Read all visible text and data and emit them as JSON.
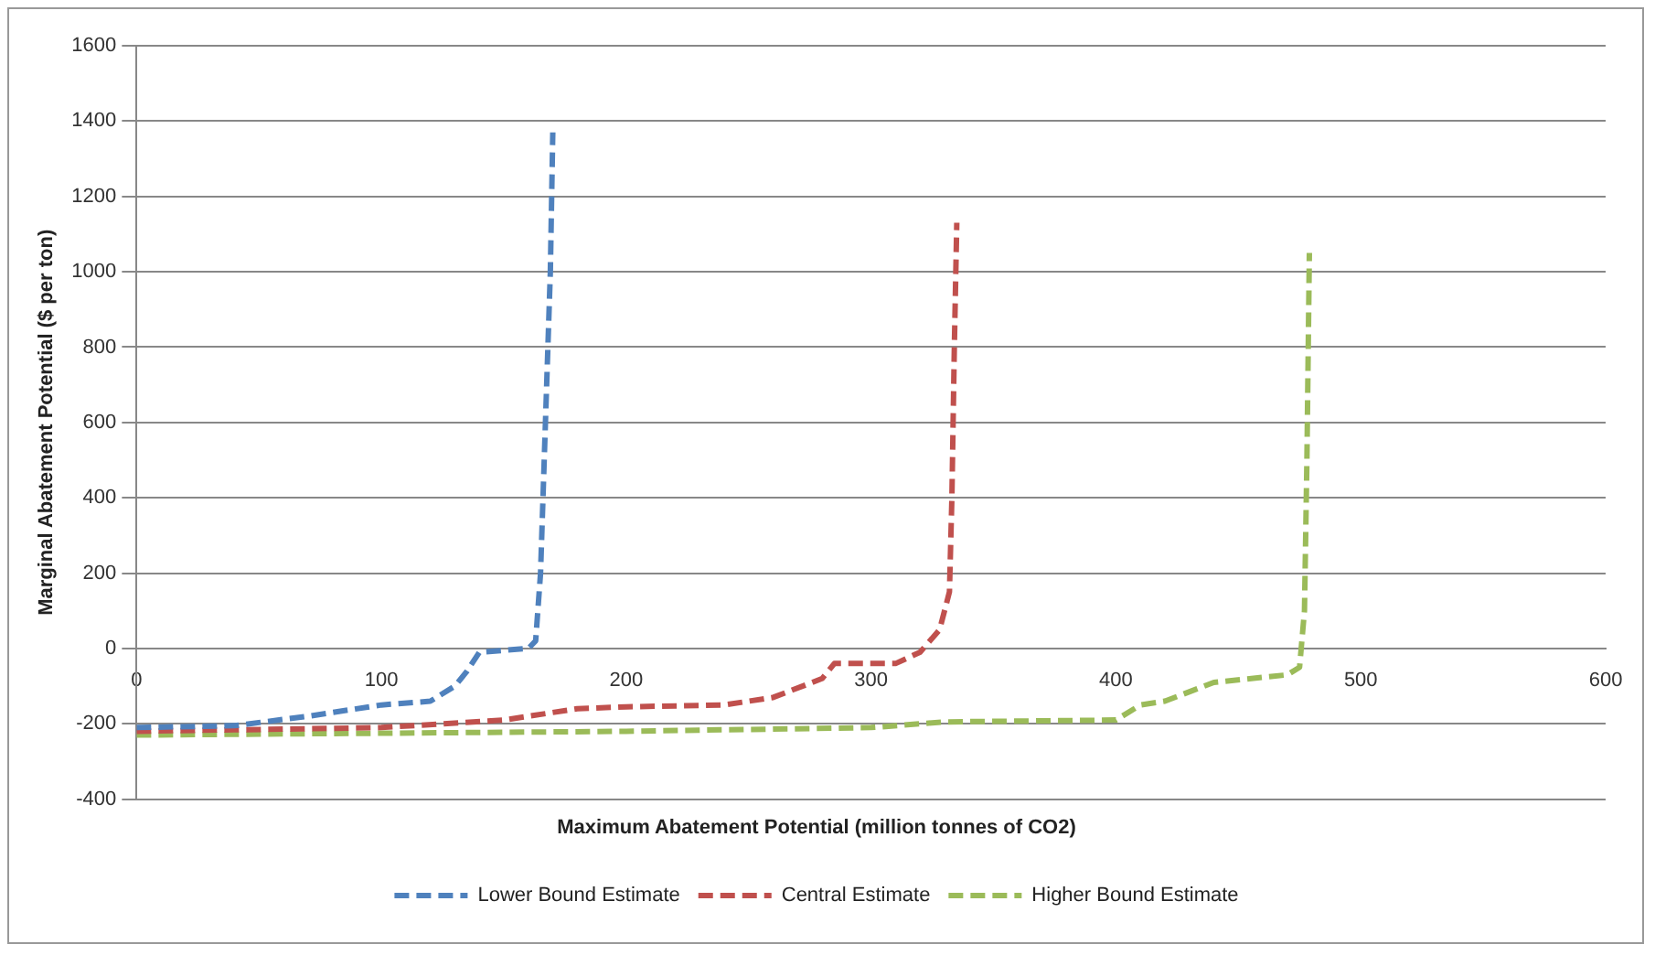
{
  "chart_data": {
    "type": "line",
    "xlabel": "Maximum Abatement Potential (million tonnes of CO2)",
    "ylabel": "Marginal Abatement Potential ($ per ton)",
    "xlim": [
      0,
      600
    ],
    "xticks": [
      0,
      100,
      200,
      300,
      400,
      500,
      600
    ],
    "ylim": [
      -400,
      1600
    ],
    "yticks": [
      -400,
      -200,
      0,
      200,
      400,
      600,
      800,
      1000,
      1200,
      1400,
      1600
    ],
    "grid": "y",
    "legend": "bottom",
    "line_style": "dashed",
    "marker": "none",
    "series": [
      {
        "name": "Lower Bound Estimate",
        "color": "#4f81bd",
        "x": [
          0,
          40,
          70,
          100,
          120,
          130,
          135,
          140,
          160,
          163,
          165,
          167,
          169,
          170
        ],
        "values": [
          -210,
          -205,
          -180,
          -150,
          -140,
          -100,
          -60,
          -10,
          0,
          20,
          200,
          600,
          1000,
          1370
        ]
      },
      {
        "name": "Central Estimate",
        "color": "#c0504d",
        "x": [
          0,
          100,
          150,
          180,
          200,
          240,
          260,
          280,
          285,
          310,
          320,
          328,
          332,
          333,
          334,
          335
        ],
        "values": [
          -220,
          -210,
          -190,
          -160,
          -155,
          -150,
          -130,
          -80,
          -40,
          -40,
          -10,
          50,
          150,
          400,
          800,
          1130
        ]
      },
      {
        "name": "Higher Bound Estimate",
        "color": "#9bbb59",
        "x": [
          0,
          100,
          200,
          300,
          330,
          400,
          410,
          420,
          440,
          470,
          475,
          477,
          478,
          479
        ],
        "values": [
          -230,
          -225,
          -220,
          -210,
          -195,
          -190,
          -150,
          -140,
          -90,
          -70,
          -50,
          100,
          500,
          1050
        ]
      }
    ]
  }
}
